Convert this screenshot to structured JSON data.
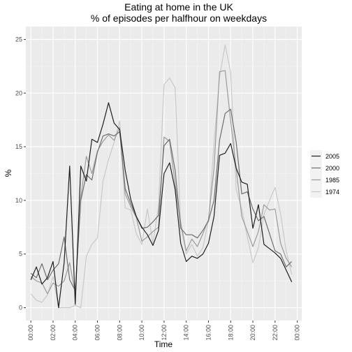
{
  "chart_data": {
    "type": "line",
    "title": "Eating at home in the UK",
    "subtitle": "% of episodes per halfhour on weekdays",
    "xlabel": "Time",
    "ylabel": "%",
    "x_ticks": [
      "00:00",
      "02:00",
      "04:00",
      "06:00",
      "08:00",
      "10:00",
      "12:00",
      "14:00",
      "16:00",
      "18:00",
      "20:00",
      "22:00",
      "00:00"
    ],
    "y_ticks": [
      "0",
      "5",
      "10",
      "15",
      "20",
      "25"
    ],
    "xlim": [
      -0.9,
      48.8
    ],
    "ylim": [
      -1.2,
      26.2
    ],
    "grid": true,
    "legend_position": "right",
    "x": [
      0,
      0.5,
      1,
      1.5,
      2,
      2.5,
      3,
      3.5,
      4,
      4.5,
      5,
      5.5,
      6,
      6.5,
      7,
      7.5,
      8,
      8.5,
      9,
      9.5,
      10,
      10.5,
      11,
      11.5,
      12,
      12.5,
      13,
      13.5,
      14,
      14.5,
      15,
      15.5,
      16,
      16.5,
      17,
      17.5,
      18,
      18.5,
      19,
      19.5,
      20,
      20.5,
      21,
      21.5,
      22,
      22.5,
      23,
      23.5
    ],
    "series": [
      {
        "name": "2005",
        "color": "#1f1f1f",
        "values": [
          2.6,
          3.8,
          2.2,
          2.8,
          4.3,
          0.0,
          4.2,
          13.2,
          0.3,
          13.2,
          11.8,
          15.7,
          15.4,
          17.1,
          19.1,
          17.2,
          16.6,
          12.8,
          10.1,
          8.5,
          7.5,
          6.8,
          5.8,
          7.2,
          12.5,
          13.5,
          11.0,
          6.0,
          4.3,
          4.8,
          4.6,
          5.0,
          6.0,
          8.5,
          14.2,
          14.4,
          15.3,
          13.0,
          11.7,
          11.5,
          7.4,
          9.6,
          5.9,
          5.5,
          5.1,
          4.6,
          3.5,
          2.4
        ]
      },
      {
        "name": "2000",
        "color": "#6e6e6e",
        "values": [
          3.2,
          2.8,
          4.1,
          2.6,
          3.5,
          4.1,
          6.6,
          2.6,
          1.6,
          10.0,
          12.4,
          11.9,
          14.5,
          16.0,
          16.2,
          16.0,
          16.4,
          11.1,
          9.7,
          8.5,
          7.4,
          7.5,
          8.0,
          8.6,
          15.1,
          15.7,
          12.8,
          7.4,
          6.8,
          6.8,
          6.5,
          7.2,
          8.1,
          10.0,
          15.6,
          18.1,
          18.5,
          15.4,
          10.6,
          10.8,
          9.2,
          8.1,
          8.5,
          6.9,
          5.3,
          5.0,
          3.8,
          4.3
        ]
      },
      {
        "name": "1985",
        "color": "#9c9c9c",
        "values": [
          2.9,
          2.5,
          2.3,
          1.3,
          2.3,
          2.0,
          2.5,
          4.2,
          1.3,
          10.3,
          14.1,
          12.5,
          14.6,
          15.5,
          16.1,
          15.6,
          16.8,
          10.6,
          9.4,
          8.4,
          6.2,
          6.6,
          7.1,
          7.5,
          15.9,
          15.5,
          11.5,
          7.9,
          5.3,
          6.4,
          5.7,
          6.9,
          8.2,
          13.0,
          22.0,
          22.1,
          17.4,
          12.9,
          8.5,
          7.1,
          5.7,
          7.1,
          9.6,
          9.1,
          9.2,
          6.0,
          4.6,
          3.8
        ]
      },
      {
        "name": "1974",
        "color": "#c9c9c9",
        "values": [
          1.3,
          0.7,
          0.5,
          1.2,
          2.9,
          0.0,
          0.0,
          0.0,
          0.2,
          0.0,
          4.8,
          5.9,
          6.5,
          11.8,
          13.8,
          15.4,
          17.4,
          9.3,
          9.1,
          6.9,
          5.9,
          9.2,
          6.0,
          9.5,
          20.8,
          21.4,
          20.5,
          7.6,
          5.0,
          5.9,
          4.8,
          5.6,
          8.1,
          15.3,
          21.5,
          24.5,
          21.9,
          11.0,
          9.2,
          6.6,
          4.2,
          5.6,
          8.7,
          10.0,
          11.2,
          8.7,
          5.3,
          3.1
        ]
      }
    ]
  }
}
